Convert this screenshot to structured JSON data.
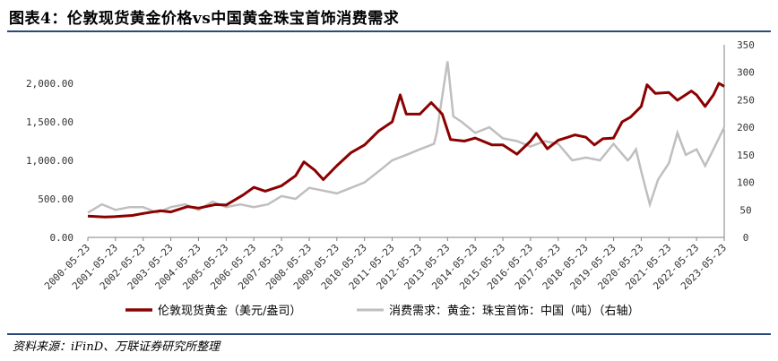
{
  "title": "图表4：伦敦现货黄金价格vs中国黄金珠宝首饰消费需求",
  "source": "资料来源：iFinD、万联证券研究所整理",
  "chart_data": {
    "type": "line",
    "left_axis": {
      "min": 0,
      "max": 2500,
      "ticks": [
        "0.00",
        "500.00",
        "1,000.00",
        "1,500.00",
        "2,000.00"
      ],
      "tick_values": [
        0,
        500,
        1000,
        1500,
        2000
      ]
    },
    "right_axis": {
      "min": 0,
      "max": 350,
      "ticks": [
        "0",
        "50",
        "100",
        "150",
        "200",
        "250",
        "300",
        "350"
      ],
      "tick_values": [
        0,
        50,
        100,
        150,
        200,
        250,
        300,
        350
      ]
    },
    "x_ticks": [
      "2000-05-23",
      "2001-05-23",
      "2002-05-23",
      "2003-05-23",
      "2004-05-23",
      "2005-05-23",
      "2006-05-23",
      "2007-05-23",
      "2008-05-23",
      "2009-05-23",
      "2010-05-23",
      "2011-05-23",
      "2012-05-23",
      "2013-05-23",
      "2014-05-23",
      "2015-05-23",
      "2016-05-23",
      "2017-05-23",
      "2018-05-23",
      "2019-05-23",
      "2020-05-23",
      "2021-05-23",
      "2022-05-23",
      "2023-05-23"
    ],
    "x_range": [
      2000.39,
      2023.39
    ],
    "series": [
      {
        "name": "伦敦现货黄金（美元/盎司）",
        "axis": "left",
        "color": "#8b0000",
        "x": [
          2000.39,
          2001.0,
          2001.39,
          2002.0,
          2002.39,
          2003.0,
          2003.39,
          2004.0,
          2004.39,
          2005.0,
          2005.39,
          2006.0,
          2006.39,
          2006.8,
          2007.39,
          2007.9,
          2008.2,
          2008.6,
          2008.9,
          2009.39,
          2009.9,
          2010.39,
          2010.9,
          2011.39,
          2011.68,
          2011.9,
          2012.39,
          2012.8,
          2013.2,
          2013.39,
          2013.5,
          2014.0,
          2014.39,
          2015.0,
          2015.39,
          2015.9,
          2016.39,
          2016.6,
          2017.0,
          2017.39,
          2018.0,
          2018.39,
          2018.7,
          2019.0,
          2019.39,
          2019.7,
          2020.0,
          2020.39,
          2020.6,
          2020.9,
          2021.39,
          2021.7,
          2022.2,
          2022.39,
          2022.7,
          2023.0,
          2023.2,
          2023.39
        ],
        "y": [
          275,
          265,
          270,
          285,
          310,
          345,
          330,
          400,
          380,
          425,
          420,
          550,
          650,
          600,
          670,
          800,
          980,
          870,
          750,
          930,
          1100,
          1200,
          1380,
          1500,
          1850,
          1600,
          1600,
          1750,
          1600,
          1390,
          1270,
          1250,
          1290,
          1200,
          1200,
          1080,
          1250,
          1350,
          1150,
          1260,
          1330,
          1300,
          1200,
          1280,
          1290,
          1500,
          1560,
          1700,
          1980,
          1870,
          1880,
          1780,
          1900,
          1850,
          1700,
          1850,
          2000,
          1960
        ]
      },
      {
        "name": "消费需求：黄金：珠宝首饰：中国（吨）（右轴）",
        "axis": "right",
        "color": "#bfbfbf",
        "x": [
          2000.39,
          2000.9,
          2001.39,
          2001.9,
          2002.39,
          2002.9,
          2003.39,
          2003.9,
          2004.39,
          2004.9,
          2005.39,
          2005.9,
          2006.39,
          2006.9,
          2007.39,
          2007.9,
          2008.39,
          2008.9,
          2009.39,
          2009.9,
          2010.39,
          2010.9,
          2011.39,
          2011.9,
          2012.39,
          2012.9,
          2013.0,
          2013.39,
          2013.6,
          2013.9,
          2014.39,
          2014.9,
          2015.39,
          2015.9,
          2016.39,
          2016.9,
          2017.39,
          2017.9,
          2018.39,
          2018.9,
          2019.39,
          2019.9,
          2020.0,
          2020.2,
          2020.39,
          2020.7,
          2021.0,
          2021.39,
          2021.7,
          2022.0,
          2022.39,
          2022.7,
          2023.0,
          2023.39
        ],
        "y": [
          45,
          60,
          50,
          55,
          55,
          45,
          55,
          60,
          50,
          65,
          55,
          60,
          55,
          60,
          75,
          70,
          90,
          85,
          80,
          90,
          100,
          120,
          140,
          150,
          160,
          170,
          190,
          320,
          220,
          210,
          190,
          200,
          180,
          175,
          165,
          175,
          170,
          140,
          145,
          140,
          170,
          140,
          145,
          160,
          120,
          60,
          105,
          135,
          190,
          150,
          160,
          130,
          160,
          200
        ]
      }
    ]
  }
}
